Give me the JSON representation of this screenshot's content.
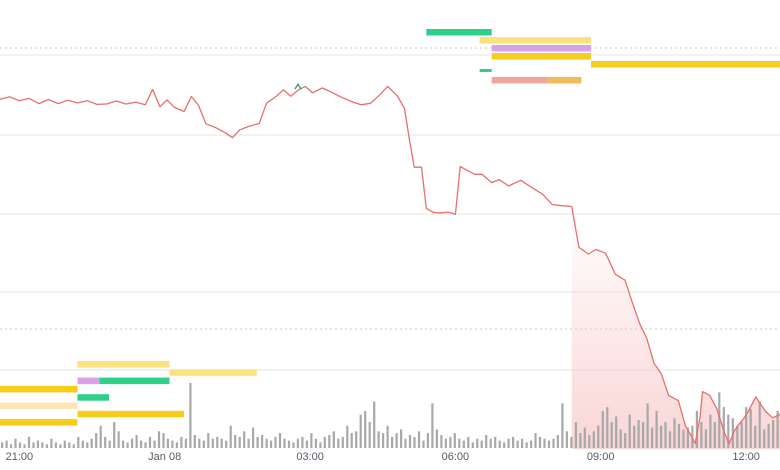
{
  "chart_data": {
    "type": "line",
    "title": "",
    "xlabel": "",
    "ylabel": "",
    "x_tick_labels": [
      "21:00",
      "Jan 08",
      "03:00",
      "06:00",
      "09:00",
      "12:00"
    ],
    "x_tick_hours": [
      0,
      3,
      6,
      9,
      12,
      15
    ],
    "x_range_hours": [
      -0.4,
      15.7
    ],
    "y_range": [
      0,
      100
    ],
    "grid": true,
    "legend": "none",
    "colors": {
      "line": "#e8706a",
      "area_fill": "#f8c8c8",
      "grid": "#e4e4e4",
      "volume": "#a8a8a8",
      "green": "#2ed08a",
      "gold": "#f8cc1b",
      "light_gold": "#fbe27d",
      "cream": "#fde6b4",
      "lavender": "#d8a3e6",
      "salmon": "#f0a59d",
      "orange": "#f4b959"
    },
    "price_series": {
      "name": "",
      "points": [
        [
          -0.4,
          90.6
        ],
        [
          -0.2,
          91.2
        ],
        [
          0.0,
          90.2
        ],
        [
          0.2,
          90.8
        ],
        [
          0.4,
          89.4
        ],
        [
          0.6,
          90.5
        ],
        [
          0.8,
          89.4
        ],
        [
          1.0,
          90.3
        ],
        [
          1.2,
          89.6
        ],
        [
          1.4,
          90.2
        ],
        [
          1.6,
          89.2
        ],
        [
          1.8,
          89.3
        ],
        [
          2.0,
          90.1
        ],
        [
          2.2,
          89.3
        ],
        [
          2.4,
          89.8
        ],
        [
          2.6,
          89.1
        ],
        [
          2.75,
          93.2
        ],
        [
          2.9,
          88.6
        ],
        [
          3.05,
          90.4
        ],
        [
          3.2,
          88.4
        ],
        [
          3.4,
          87.3
        ],
        [
          3.55,
          91.3
        ],
        [
          3.7,
          88.9
        ],
        [
          3.85,
          84.0
        ],
        [
          4.05,
          83.0
        ],
        [
          4.25,
          81.6
        ],
        [
          4.4,
          80.3
        ],
        [
          4.55,
          82.4
        ],
        [
          4.75,
          83.4
        ],
        [
          4.95,
          84.1
        ],
        [
          5.1,
          89.5
        ],
        [
          5.3,
          91.3
        ],
        [
          5.45,
          93.1
        ],
        [
          5.6,
          91.4
        ],
        [
          5.75,
          93.0
        ],
        [
          5.9,
          94.0
        ],
        [
          6.05,
          92.3
        ],
        [
          6.25,
          93.6
        ],
        [
          6.45,
          92.4
        ],
        [
          6.65,
          91.1
        ],
        [
          6.85,
          90.0
        ],
        [
          7.05,
          89.1
        ],
        [
          7.25,
          89.5
        ],
        [
          7.45,
          91.9
        ],
        [
          7.6,
          94.0
        ],
        [
          7.8,
          91.5
        ],
        [
          7.95,
          88.1
        ],
        [
          8.05,
          79.8
        ],
        [
          8.15,
          72.4
        ],
        [
          8.3,
          72.4
        ],
        [
          8.4,
          61.4
        ],
        [
          8.55,
          60.3
        ],
        [
          8.7,
          60.2
        ],
        [
          8.85,
          60.4
        ],
        [
          9.0,
          59.8
        ],
        [
          9.1,
          72.6
        ],
        [
          9.25,
          71.5
        ],
        [
          9.4,
          70.5
        ],
        [
          9.55,
          70.5
        ],
        [
          9.75,
          68.3
        ],
        [
          9.9,
          69.1
        ],
        [
          10.1,
          67.4
        ],
        [
          10.35,
          68.9
        ],
        [
          10.55,
          67.2
        ],
        [
          10.8,
          65.2
        ],
        [
          11.0,
          62.4
        ],
        [
          11.2,
          62.1
        ],
        [
          11.4,
          61.9
        ],
        [
          11.55,
          51.0
        ],
        [
          11.75,
          49.2
        ],
        [
          11.9,
          50.4
        ],
        [
          12.1,
          49.4
        ],
        [
          12.3,
          43.8
        ],
        [
          12.5,
          42.2
        ],
        [
          12.65,
          36.3
        ],
        [
          12.8,
          30.7
        ],
        [
          12.95,
          26.6
        ],
        [
          13.1,
          20.0
        ],
        [
          13.25,
          17.2
        ],
        [
          13.4,
          11.4
        ],
        [
          13.6,
          10.0
        ],
        [
          13.75,
          3.2
        ],
        [
          13.85,
          1.0
        ],
        [
          13.95,
          -1.5
        ],
        [
          14.05,
          5.7
        ],
        [
          14.1,
          12.4
        ],
        [
          14.25,
          11.4
        ],
        [
          14.4,
          7.7
        ],
        [
          14.55,
          1.5
        ],
        [
          14.65,
          -1.6
        ],
        [
          14.75,
          1.8
        ],
        [
          14.85,
          3.6
        ],
        [
          14.95,
          5.2
        ],
        [
          15.05,
          7.2
        ],
        [
          15.2,
          11.0
        ],
        [
          15.4,
          7.1
        ],
        [
          15.55,
          5.4
        ],
        [
          15.7,
          6.3
        ]
      ]
    },
    "volume_series": {
      "name": "",
      "values": [
        3,
        4,
        2,
        5,
        3,
        2,
        6,
        3,
        4,
        3,
        2,
        5,
        3,
        2,
        4,
        3,
        2,
        6,
        4,
        3,
        5,
        8,
        12,
        6,
        4,
        14,
        9,
        4,
        3,
        5,
        7,
        4,
        3,
        6,
        4,
        9,
        8,
        5,
        4,
        3,
        6,
        5,
        35,
        7,
        5,
        4,
        8,
        5,
        6,
        5,
        4,
        12,
        7,
        6,
        9,
        5,
        11,
        6,
        7,
        5,
        4,
        6,
        8,
        5,
        4,
        3,
        5,
        6,
        4,
        8,
        5,
        3,
        6,
        7,
        9,
        5,
        6,
        12,
        8,
        9,
        18,
        20,
        14,
        25,
        9,
        8,
        12,
        6,
        8,
        10,
        5,
        7,
        6,
        9,
        4,
        8,
        24,
        10,
        7,
        5,
        6,
        8,
        5,
        4,
        6,
        3,
        5,
        4,
        7,
        5,
        6,
        4,
        3,
        5,
        6,
        4,
        5,
        3,
        4,
        8,
        6,
        5,
        4,
        5,
        7,
        24,
        9,
        6,
        14,
        8,
        11,
        7,
        9,
        12,
        20,
        22,
        14,
        17,
        10,
        8,
        18,
        12,
        15,
        14,
        24,
        11,
        20,
        12,
        14,
        9,
        16,
        13,
        10,
        11,
        12,
        20,
        14,
        10,
        18,
        14,
        30,
        22,
        18,
        16,
        12,
        14,
        22,
        21,
        12,
        25,
        10,
        13,
        15,
        20
      ]
    },
    "depth_bars": [
      {
        "color": "green",
        "h_from": 8.4,
        "h_to": 9.75,
        "row": 0
      },
      {
        "color": "light_gold",
        "h_from": 9.5,
        "h_to": 11.8,
        "row": 1
      },
      {
        "color": "lavender",
        "h_from": 9.75,
        "h_to": 11.8,
        "row": 2
      },
      {
        "color": "gold",
        "h_from": 9.75,
        "h_to": 11.8,
        "row": 3
      },
      {
        "color": "gold",
        "h_from": 11.8,
        "h_to": 15.7,
        "row": 4
      },
      {
        "color": "green",
        "h_from": 9.5,
        "h_to": 9.75,
        "row": 5
      },
      {
        "color": "salmon",
        "h_from": 9.75,
        "h_to": 10.9,
        "row": 6
      },
      {
        "color": "orange",
        "h_from": 10.9,
        "h_to": 11.6,
        "row": 6
      },
      {
        "color": "light_gold",
        "h_from": 1.2,
        "h_to": 3.1,
        "row": 10
      },
      {
        "color": "light_gold",
        "h_from": 3.1,
        "h_to": 4.9,
        "row": 11
      },
      {
        "color": "lavender",
        "h_from": 1.2,
        "h_to": 1.65,
        "row": 12
      },
      {
        "color": "green",
        "h_from": 1.65,
        "h_to": 3.1,
        "row": 12
      },
      {
        "color": "gold",
        "h_from": -0.4,
        "h_to": 1.2,
        "row": 13
      },
      {
        "color": "green",
        "h_from": 1.2,
        "h_to": 1.85,
        "row": 14
      },
      {
        "color": "cream",
        "h_from": -0.4,
        "h_to": 1.2,
        "row": 15
      },
      {
        "color": "gold",
        "h_from": 1.2,
        "h_to": 3.4,
        "row": 16
      },
      {
        "color": "gold",
        "h_from": -0.4,
        "h_to": 1.2,
        "row": 17
      }
    ]
  }
}
